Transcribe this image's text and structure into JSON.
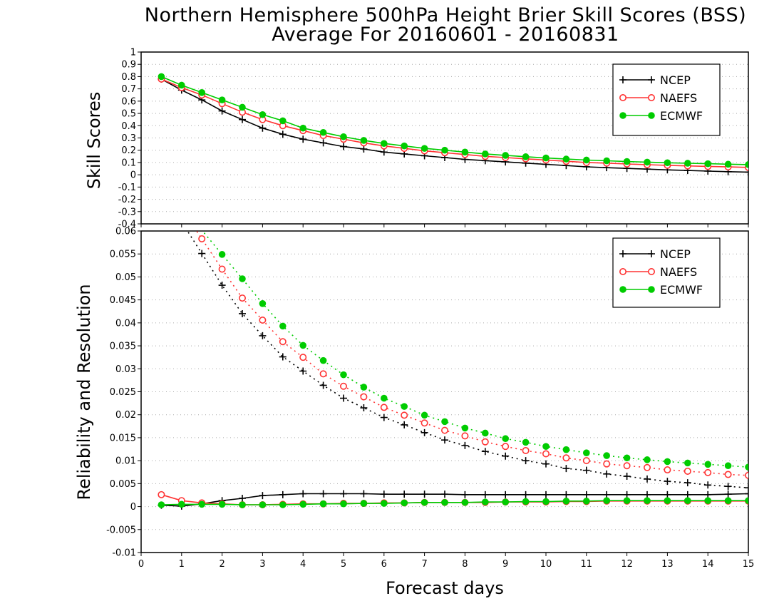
{
  "title": {
    "line1": "Northern Hemisphere 500hPa Height Brier Skill Scores (BSS)",
    "line2": "Average For 20160601 - 20160831"
  },
  "xlabel": "Forecast days",
  "colors": {
    "NCEP": "#000000",
    "NAEFS": "#ff3333",
    "ECMWF": "#00cc00",
    "grid": "#aaaaaa"
  },
  "chart_data": [
    {
      "type": "line",
      "panel": "top",
      "ylabel": "Skill Scores",
      "xlim": [
        0,
        15
      ],
      "ylim": [
        -0.4,
        1
      ],
      "xticks": [
        "0",
        "1",
        "2",
        "3",
        "4",
        "5",
        "6",
        "7",
        "8",
        "9",
        "10",
        "11",
        "12",
        "13",
        "14",
        "15"
      ],
      "yticks": [
        "-0.4",
        "-0.3",
        "-0.2",
        "-0.1",
        "0",
        "0.1",
        "0.2",
        "0.3",
        "0.4",
        "0.5",
        "0.6",
        "0.7",
        "0.8",
        "0.9",
        "1"
      ],
      "grid": true,
      "legend_position": "top-right",
      "x": [
        0.5,
        1,
        1.5,
        2,
        2.5,
        3,
        3.5,
        4,
        4.5,
        5,
        5.5,
        6,
        6.5,
        7,
        7.5,
        8,
        8.5,
        9,
        9.5,
        10,
        10.5,
        11,
        11.5,
        12,
        12.5,
        13,
        13.5,
        14,
        14.5,
        15
      ],
      "series": [
        {
          "name": "NCEP",
          "style": "solid",
          "marker": "plus",
          "values": [
            0.78,
            0.69,
            0.61,
            0.52,
            0.45,
            0.38,
            0.33,
            0.29,
            0.26,
            0.23,
            0.21,
            0.185,
            0.17,
            0.155,
            0.14,
            0.125,
            0.115,
            0.105,
            0.095,
            0.085,
            0.075,
            0.065,
            0.058,
            0.052,
            0.046,
            0.04,
            0.035,
            0.03,
            0.025,
            0.022
          ]
        },
        {
          "name": "NAEFS",
          "style": "solid",
          "marker": "open-circle",
          "values": [
            0.78,
            0.71,
            0.65,
            0.58,
            0.51,
            0.45,
            0.4,
            0.36,
            0.32,
            0.29,
            0.26,
            0.235,
            0.215,
            0.195,
            0.18,
            0.165,
            0.15,
            0.14,
            0.13,
            0.12,
            0.11,
            0.1,
            0.095,
            0.088,
            0.082,
            0.077,
            0.072,
            0.068,
            0.064,
            0.06
          ]
        },
        {
          "name": "ECMWF",
          "style": "solid",
          "marker": "filled-circle",
          "values": [
            0.8,
            0.73,
            0.67,
            0.61,
            0.55,
            0.49,
            0.44,
            0.38,
            0.345,
            0.31,
            0.28,
            0.255,
            0.235,
            0.215,
            0.2,
            0.185,
            0.17,
            0.158,
            0.147,
            0.137,
            0.128,
            0.12,
            0.114,
            0.108,
            0.103,
            0.098,
            0.094,
            0.09,
            0.086,
            0.083
          ]
        }
      ]
    },
    {
      "type": "line",
      "panel": "bottom",
      "ylabel": "Reliability and Resolution",
      "xlim": [
        0,
        15
      ],
      "ylim": [
        -0.01,
        0.06
      ],
      "xticks": [
        "0",
        "1",
        "2",
        "3",
        "4",
        "5",
        "6",
        "7",
        "8",
        "9",
        "10",
        "11",
        "12",
        "13",
        "14",
        "15"
      ],
      "yticks": [
        "-0.01",
        "-0.005",
        "0",
        "0.005",
        "0.01",
        "0.015",
        "0.02",
        "0.025",
        "0.03",
        "0.035",
        "0.04",
        "0.045",
        "0.05",
        "0.055",
        "0.06"
      ],
      "grid": true,
      "legend_position": "top-right",
      "x": [
        0.5,
        1,
        1.5,
        2,
        2.5,
        3,
        3.5,
        4,
        4.5,
        5,
        5.5,
        6,
        6.5,
        7,
        7.5,
        8,
        8.5,
        9,
        9.5,
        10,
        10.5,
        11,
        11.5,
        12,
        12.5,
        13,
        13.5,
        14,
        14.5,
        15
      ],
      "series": [
        {
          "name": "NCEP",
          "style": "dotted",
          "marker": "plus",
          "values": [
            null,
            null,
            0.0551,
            0.0482,
            0.042,
            0.0372,
            0.0326,
            0.0295,
            0.0264,
            0.0236,
            0.0215,
            0.0194,
            0.0178,
            0.0161,
            0.0145,
            0.0133,
            0.012,
            0.011,
            0.01,
            0.0093,
            0.0083,
            0.0079,
            0.0071,
            0.0066,
            0.006,
            0.0055,
            0.0052,
            0.0047,
            0.0044,
            0.0041
          ]
        },
        {
          "name": "NAEFS",
          "style": "dotted",
          "marker": "open-circle",
          "values": [
            null,
            null,
            0.0583,
            0.0517,
            0.0454,
            0.0406,
            0.0359,
            0.0325,
            0.0289,
            0.0262,
            0.0239,
            0.0216,
            0.0199,
            0.0182,
            0.0166,
            0.0154,
            0.0141,
            0.0131,
            0.0122,
            0.0115,
            0.0106,
            0.01,
            0.0093,
            0.0089,
            0.0085,
            0.008,
            0.0077,
            0.0074,
            0.007,
            0.0068
          ]
        },
        {
          "name": "ECMWF",
          "style": "dotted",
          "marker": "filled-circle",
          "values": [
            null,
            null,
            null,
            0.0549,
            0.0496,
            0.0442,
            0.0393,
            0.0351,
            0.0318,
            0.0287,
            0.026,
            0.0236,
            0.0218,
            0.0199,
            0.0185,
            0.0171,
            0.016,
            0.0148,
            0.014,
            0.0131,
            0.0124,
            0.0117,
            0.0111,
            0.0106,
            0.0102,
            0.0098,
            0.0095,
            0.0092,
            0.0089,
            0.0086
          ]
        },
        {
          "name": "NCEP",
          "style": "solid",
          "marker": "plus",
          "values": [
            0.0003,
            0.0001,
            0.0006,
            0.0013,
            0.0018,
            0.0024,
            0.0026,
            0.0028,
            0.0028,
            0.0028,
            0.0028,
            0.0027,
            0.0027,
            0.0027,
            0.0027,
            0.0026,
            0.0026,
            0.0026,
            0.0026,
            0.0026,
            0.0026,
            0.0026,
            0.0026,
            0.0026,
            0.0026,
            0.0026,
            0.0026,
            0.0026,
            0.0027,
            0.0028
          ]
        },
        {
          "name": "NAEFS",
          "style": "solid",
          "marker": "open-circle",
          "values": [
            0.0026,
            0.0013,
            0.0008,
            0.0006,
            0.0004,
            0.0004,
            0.0005,
            0.0006,
            0.0006,
            0.0007,
            0.0007,
            0.0008,
            0.0008,
            0.0009,
            0.0009,
            0.0009,
            0.0009,
            0.001,
            0.001,
            0.001,
            0.0011,
            0.0011,
            0.0012,
            0.0012,
            0.0012,
            0.0012,
            0.0012,
            0.0012,
            0.0012,
            0.0012
          ]
        },
        {
          "name": "ECMWF",
          "style": "solid",
          "marker": "filled-circle",
          "values": [
            0.0004,
            0.0005,
            0.0005,
            0.0005,
            0.0004,
            0.0004,
            0.0004,
            0.0005,
            0.0006,
            0.0006,
            0.0007,
            0.0007,
            0.0008,
            0.0009,
            0.0009,
            0.0009,
            0.001,
            0.001,
            0.0011,
            0.0011,
            0.0012,
            0.0012,
            0.0013,
            0.0013,
            0.0013,
            0.0013,
            0.0013,
            0.0013,
            0.0013,
            0.0013
          ]
        }
      ]
    }
  ],
  "legend": [
    "NCEP",
    "NAEFS",
    "ECMWF"
  ]
}
